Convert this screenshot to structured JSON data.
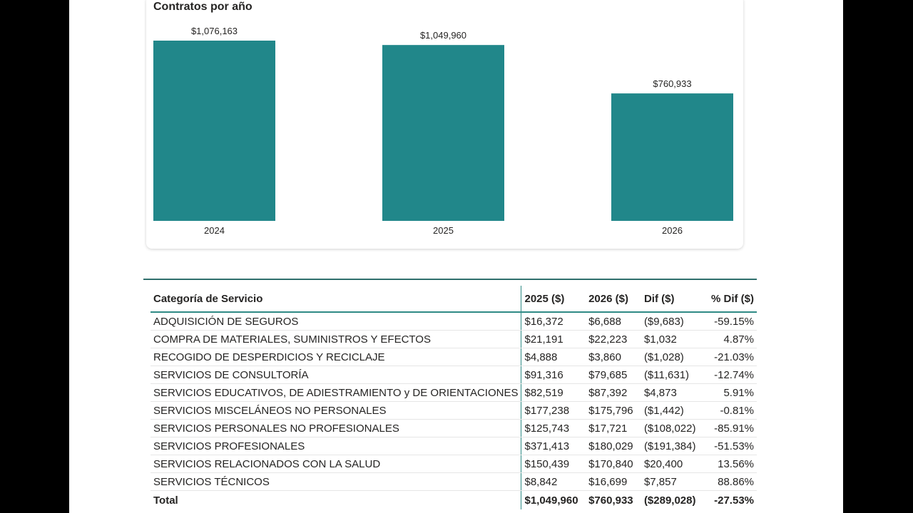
{
  "chart_data": {
    "type": "bar",
    "title": "Contratos por año",
    "categories": [
      "2024",
      "2025",
      "2026"
    ],
    "values": [
      1076163,
      1049960,
      760933
    ],
    "value_labels": [
      "$1,076,163",
      "$1,049,960",
      "$760,933"
    ],
    "ylim": [
      0,
      1076163
    ],
    "bar_color": "#21878A",
    "grid": false
  },
  "table": {
    "headers": [
      "Categoría de Servicio",
      "2025 ($)",
      "2026 ($)",
      "Dif ($)",
      "% Dif ($)"
    ],
    "rows": [
      [
        "ADQUISICIÓN DE SEGUROS",
        "$16,372",
        "$6,688",
        "($9,683)",
        "-59.15%"
      ],
      [
        "COMPRA DE MATERIALES, SUMINISTROS Y EFECTOS",
        "$21,191",
        "$22,223",
        "$1,032",
        "4.87%"
      ],
      [
        "RECOGIDO DE DESPERDICIOS Y RECICLAJE",
        "$4,888",
        "$3,860",
        "($1,028)",
        "-21.03%"
      ],
      [
        "SERVICIOS DE CONSULTORÍA",
        "$91,316",
        "$79,685",
        "($11,631)",
        "-12.74%"
      ],
      [
        "SERVICIOS EDUCATIVOS, DE ADIESTRAMIENTO y DE ORIENTACIONES",
        "$82,519",
        "$87,392",
        "$4,873",
        "5.91%"
      ],
      [
        "SERVICIOS MISCELÁNEOS NO PERSONALES",
        "$177,238",
        "$175,796",
        "($1,442)",
        "-0.81%"
      ],
      [
        "SERVICIOS PERSONALES NO PROFESIONALES",
        "$125,743",
        "$17,721",
        "($108,022)",
        "-85.91%"
      ],
      [
        "SERVICIOS PROFESIONALES",
        "$371,413",
        "$180,029",
        "($191,384)",
        "-51.53%"
      ],
      [
        "SERVICIOS RELACIONADOS CON LA SALUD",
        "$150,439",
        "$170,840",
        "$20,400",
        "13.56%"
      ],
      [
        "SERVICIOS TÉCNICOS",
        "$8,842",
        "$16,699",
        "$7,857",
        "88.86%"
      ]
    ],
    "total": [
      "Total",
      "$1,049,960",
      "$760,933",
      "($289,028)",
      "-27.53%"
    ]
  }
}
